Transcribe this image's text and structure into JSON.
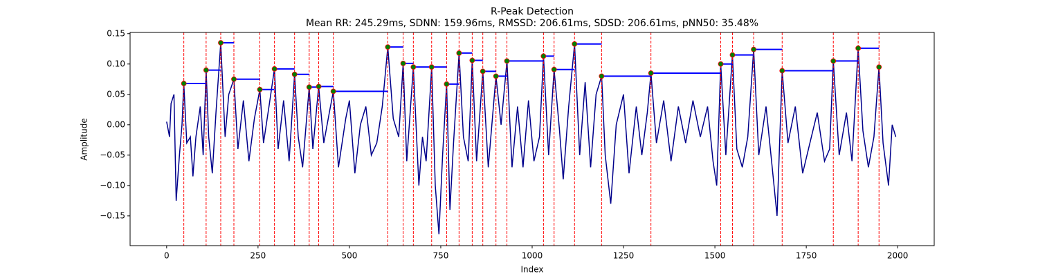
{
  "chart_data": {
    "type": "line",
    "title": "R-Peak Detection",
    "subtitle": "Mean RR: 245.29ms, SDNN: 159.96ms, RMSSD: 206.61ms, SDSD: 206.61ms, pNN50: 35.48%",
    "xlabel": "Index",
    "ylabel": "Amplitude",
    "xlim": [
      -100,
      2100
    ],
    "ylim": [
      -0.199,
      0.152
    ],
    "xticks": [
      0,
      250,
      500,
      750,
      1000,
      1250,
      1500,
      1750,
      2000
    ],
    "yticks": [
      {
        "value": -0.15,
        "label": "−0.15"
      },
      {
        "value": -0.1,
        "label": "−0.10"
      },
      {
        "value": -0.05,
        "label": "−0.05"
      },
      {
        "value": 0,
        "label": "0.00"
      },
      0.05,
      {
        "value": 0.1,
        "label": "0.10"
      },
      0.15
    ],
    "x": [
      0,
      8,
      12,
      20,
      26,
      35,
      42,
      47,
      55,
      65,
      72,
      80,
      92,
      100,
      108,
      115,
      125,
      135,
      148,
      160,
      170,
      184,
      195,
      210,
      225,
      240,
      255,
      265,
      280,
      295,
      305,
      320,
      335,
      350,
      360,
      372,
      390,
      400,
      416,
      430,
      445,
      456,
      470,
      490,
      500,
      515,
      530,
      545,
      560,
      575,
      590,
      605,
      620,
      635,
      647,
      657,
      675,
      690,
      700,
      710,
      725,
      735,
      745,
      755,
      766,
      775,
      785,
      800,
      812,
      825,
      836,
      848,
      865,
      880,
      901,
      915,
      931,
      945,
      960,
      975,
      990,
      1005,
      1020,
      1031,
      1045,
      1060,
      1075,
      1085,
      1100,
      1116,
      1130,
      1145,
      1160,
      1175,
      1190,
      1200,
      1215,
      1230,
      1250,
      1265,
      1285,
      1300,
      1315,
      1325,
      1340,
      1360,
      1380,
      1400,
      1420,
      1440,
      1460,
      1480,
      1495,
      1505,
      1516,
      1530,
      1548,
      1560,
      1575,
      1590,
      1606,
      1620,
      1640,
      1655,
      1670,
      1684,
      1700,
      1720,
      1740,
      1760,
      1780,
      1800,
      1814,
      1824,
      1840,
      1860,
      1875,
      1892,
      1905,
      1920,
      1935,
      1949,
      1960,
      1975,
      1985,
      1995
    ],
    "series": [
      {
        "color": "#00008b",
        "values": [
          0.005,
          -0.02,
          0.035,
          0.05,
          -0.125,
          -0.05,
          0.0,
          0.068,
          -0.03,
          -0.02,
          -0.085,
          -0.02,
          0.03,
          -0.05,
          0.09,
          -0.02,
          -0.08,
          0.02,
          0.135,
          -0.02,
          0.05,
          0.075,
          -0.04,
          0.04,
          -0.06,
          0.01,
          0.058,
          -0.03,
          0.03,
          0.092,
          -0.04,
          0.04,
          -0.06,
          0.083,
          -0.02,
          -0.07,
          0.062,
          -0.04,
          0.063,
          -0.03,
          0.02,
          0.055,
          -0.07,
          0.01,
          0.04,
          -0.08,
          0.0,
          0.03,
          -0.05,
          -0.03,
          0.03,
          0.128,
          0.01,
          -0.02,
          0.101,
          -0.06,
          0.095,
          -0.1,
          -0.02,
          -0.06,
          0.095,
          -0.1,
          -0.18,
          -0.05,
          0.067,
          -0.14,
          -0.03,
          0.118,
          -0.02,
          -0.06,
          0.106,
          -0.06,
          0.088,
          -0.07,
          0.08,
          0.0,
          0.105,
          -0.07,
          0.03,
          -0.07,
          0.04,
          -0.06,
          -0.02,
          0.113,
          -0.05,
          0.091,
          -0.01,
          -0.09,
          0.03,
          0.133,
          -0.05,
          0.07,
          -0.07,
          0.05,
          0.08,
          -0.05,
          -0.13,
          0.0,
          0.05,
          -0.08,
          0.03,
          -0.05,
          0.02,
          0.085,
          -0.03,
          0.04,
          -0.06,
          0.03,
          -0.03,
          0.04,
          -0.02,
          0.03,
          -0.06,
          -0.1,
          0.1,
          -0.05,
          0.115,
          -0.04,
          -0.07,
          -0.02,
          0.124,
          -0.05,
          0.03,
          -0.06,
          -0.15,
          0.089,
          -0.03,
          0.03,
          -0.08,
          -0.03,
          0.02,
          -0.06,
          -0.04,
          0.105,
          -0.05,
          0.02,
          -0.06,
          0.126,
          -0.01,
          -0.07,
          -0.02,
          0.095,
          -0.03,
          -0.1,
          0.0,
          -0.02
        ]
      }
    ],
    "peaks": {
      "color": "green",
      "edge_color": "red",
      "vline_color": "red",
      "rr_color": "blue",
      "x": [
        47,
        108,
        148,
        184,
        255,
        295,
        350,
        390,
        416,
        456,
        605,
        647,
        675,
        725,
        766,
        800,
        836,
        865,
        901,
        931,
        1031,
        1060,
        1116,
        1190,
        1325,
        1516,
        1548,
        1606,
        1684,
        1824,
        1892,
        1949
      ],
      "values": [
        0.068,
        0.09,
        0.135,
        0.075,
        0.058,
        0.092,
        0.083,
        0.062,
        0.063,
        0.055,
        0.128,
        0.101,
        0.095,
        0.095,
        0.067,
        0.118,
        0.106,
        0.088,
        0.08,
        0.105,
        0.113,
        0.091,
        0.133,
        0.08,
        0.085,
        0.1,
        0.115,
        0.124,
        0.089,
        0.105,
        0.126,
        0.095
      ]
    }
  }
}
